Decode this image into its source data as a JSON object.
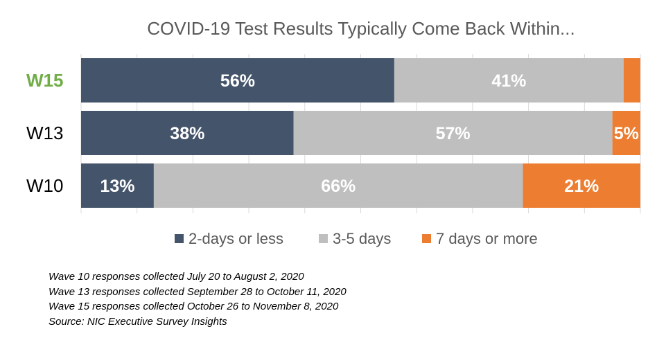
{
  "chart_data": {
    "type": "bar",
    "stacked": true,
    "orientation": "horizontal",
    "title": "COVID-19 Test Results Typically Come Back Within...",
    "categories": [
      "W15",
      "W13",
      "W10"
    ],
    "highlighted_category": "W15",
    "series": [
      {
        "name": "2-days or less",
        "color": "#44546a",
        "values": [
          56,
          38,
          13
        ],
        "labels": [
          "56%",
          "38%",
          "13%"
        ]
      },
      {
        "name": "3-5 days",
        "color": "#bfbfbf",
        "values": [
          41,
          57,
          66
        ],
        "labels": [
          "41%",
          "57%",
          "66%"
        ]
      },
      {
        "name": "7 days or more",
        "color": "#ed7d31",
        "values": [
          3,
          5,
          21
        ],
        "labels": [
          "",
          "5%",
          "21%"
        ]
      }
    ],
    "xlim": [
      0,
      100
    ],
    "grid": true,
    "legend_position": "bottom",
    "colors": {
      "highlight_label": "#70ad47",
      "data_label": "#ffffff",
      "title": "#595959"
    }
  },
  "notes": [
    "Wave 10 responses collected July 20 to August 2, 2020",
    "Wave 13 responses collected September 28 to October 11, 2020",
    "Wave 15 responses collected October 26 to November 8, 2020",
    "Source: NIC Executive Survey Insights"
  ]
}
